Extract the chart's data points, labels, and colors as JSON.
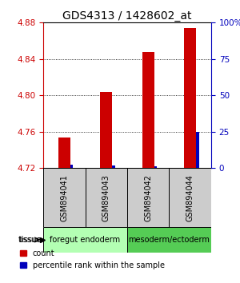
{
  "title": "GDS4313 / 1428602_at",
  "samples": [
    "GSM894041",
    "GSM894043",
    "GSM894042",
    "GSM894044"
  ],
  "red_values": [
    4.754,
    4.804,
    4.848,
    4.874
  ],
  "blue_values": [
    4.724,
    4.723,
    4.722,
    4.76
  ],
  "y_min": 4.72,
  "y_max": 4.88,
  "y_ticks": [
    4.72,
    4.76,
    4.8,
    4.84,
    4.88
  ],
  "y_right_ticks": [
    0,
    25,
    50,
    75,
    100
  ],
  "y_right_labels": [
    "0",
    "25",
    "50",
    "75",
    "100%"
  ],
  "groups": [
    {
      "label": "foregut endoderm",
      "indices": [
        0,
        1
      ],
      "color": "#b3ffb3"
    },
    {
      "label": "mesoderm/ectoderm",
      "indices": [
        2,
        3
      ],
      "color": "#55cc55"
    }
  ],
  "tissue_label": "tissue",
  "legend_count_label": "count",
  "legend_pct_label": "percentile rank within the sample",
  "red_bar_color": "#cc0000",
  "blue_bar_color": "#0000bb",
  "left_axis_color": "#cc0000",
  "right_axis_color": "#0000bb",
  "grid_color": "#000000",
  "sample_box_color": "#cccccc",
  "title_fontsize": 10,
  "tick_fontsize": 7.5,
  "sample_fontsize": 7,
  "tissue_fontsize": 7,
  "legend_fontsize": 7
}
